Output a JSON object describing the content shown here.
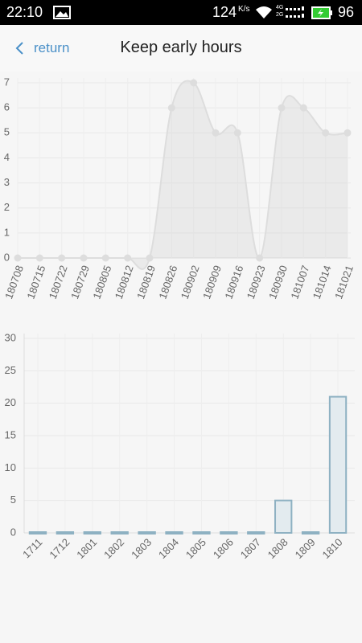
{
  "status_bar": {
    "time": "22:10",
    "speed": "124",
    "speed_unit": "K/s",
    "net_top": "4G",
    "net_bottom": "2G",
    "battery": "96"
  },
  "header": {
    "back": "return",
    "title": "Keep early hours"
  },
  "chart_data": [
    {
      "type": "line",
      "categories": [
        "180708",
        "180715",
        "180722",
        "180729",
        "180805",
        "180812",
        "180819",
        "180826",
        "180902",
        "180909",
        "180916",
        "180923",
        "180930",
        "181007",
        "181014",
        "181021"
      ],
      "values": [
        0,
        0,
        0,
        0,
        0,
        0,
        0,
        6,
        7,
        5,
        5,
        0,
        6,
        6,
        5,
        5
      ],
      "color": "#dddddd",
      "ylim": [
        0,
        7
      ],
      "yticks": [
        0,
        1,
        2,
        3,
        4,
        5,
        6,
        7
      ],
      "grid": true
    },
    {
      "type": "bar",
      "categories": [
        "1711",
        "1712",
        "1801",
        "1802",
        "1803",
        "1804",
        "1805",
        "1806",
        "1807",
        "1808",
        "1809",
        "1810"
      ],
      "values": [
        0,
        0,
        0,
        0,
        0,
        0,
        0,
        0,
        0,
        5,
        0,
        21
      ],
      "color": "#8eb1c2",
      "ylim": [
        0,
        30
      ],
      "yticks": [
        0,
        5,
        10,
        15,
        20,
        25,
        30
      ],
      "grid": true
    }
  ]
}
